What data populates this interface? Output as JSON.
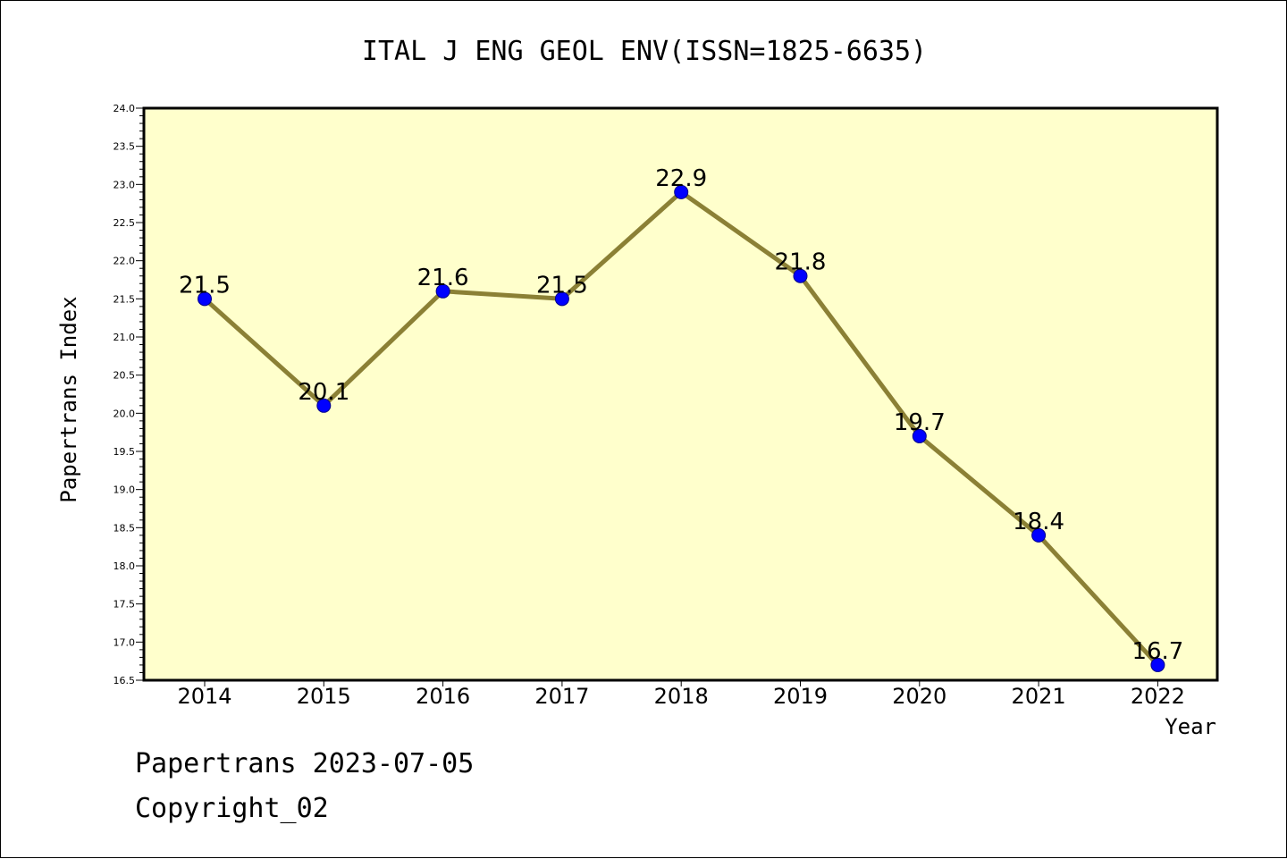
{
  "chart_data": {
    "type": "line",
    "title": "ITAL J ENG GEOL ENV(ISSN=1825-6635)",
    "xlabel": "Year",
    "ylabel": "Papertrans Index",
    "categories": [
      "2014",
      "2015",
      "2016",
      "2017",
      "2018",
      "2019",
      "2020",
      "2021",
      "2022"
    ],
    "series": [
      {
        "values": [
          21.5,
          20.1,
          21.6,
          21.5,
          22.9,
          21.8,
          19.7,
          18.4,
          16.7
        ]
      }
    ],
    "data_labels": [
      "21.5",
      "20.1",
      "21.6",
      "21.5",
      "22.9",
      "21.8",
      "19.7",
      "18.4",
      "16.7"
    ],
    "ylim": [
      16.5,
      24.0
    ],
    "yticks": [
      "16.5",
      "17.0",
      "17.5",
      "18.0",
      "18.5",
      "19.0",
      "19.5",
      "20.0",
      "20.5",
      "21.0",
      "21.5",
      "22.0",
      "22.5",
      "23.0",
      "23.5",
      "24.0"
    ],
    "grid": false,
    "colors": {
      "plot_background": "#ffffcc",
      "line": "#8b8035",
      "marker": "#0000ff"
    }
  },
  "footer": {
    "line1": "Papertrans 2023-07-05",
    "line2": "Copyright_02"
  }
}
